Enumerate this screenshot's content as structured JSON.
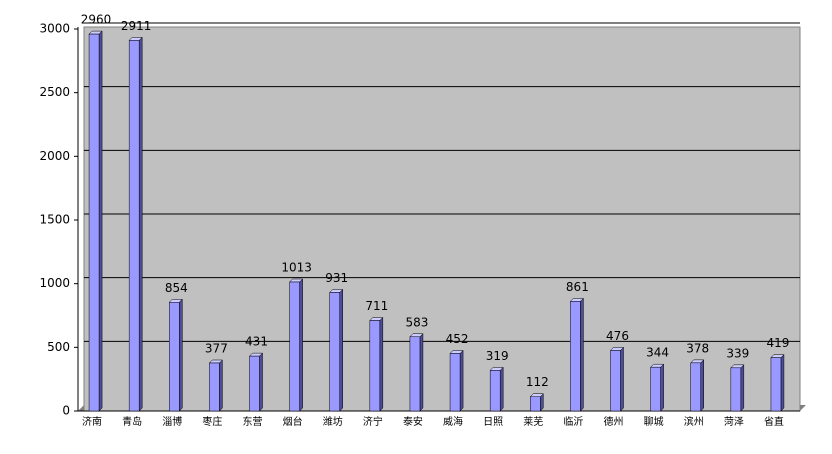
{
  "chart_data": {
    "type": "bar",
    "categories": [
      "济南",
      "青岛",
      "淄博",
      "枣庄",
      "东营",
      "烟台",
      "潍坊",
      "济宁",
      "泰安",
      "威海",
      "日照",
      "莱芜",
      "临沂",
      "德州",
      "聊城",
      "滨州",
      "菏泽",
      "省直"
    ],
    "values": [
      2960,
      2911,
      854,
      377,
      431,
      1013,
      931,
      711,
      583,
      452,
      319,
      112,
      861,
      476,
      344,
      378,
      339,
      419
    ],
    "color": "#9999ff",
    "ylim": [
      0,
      3000
    ],
    "yticks": [
      0,
      500,
      1000,
      1500,
      2000,
      2500,
      3000
    ],
    "grid": true
  }
}
